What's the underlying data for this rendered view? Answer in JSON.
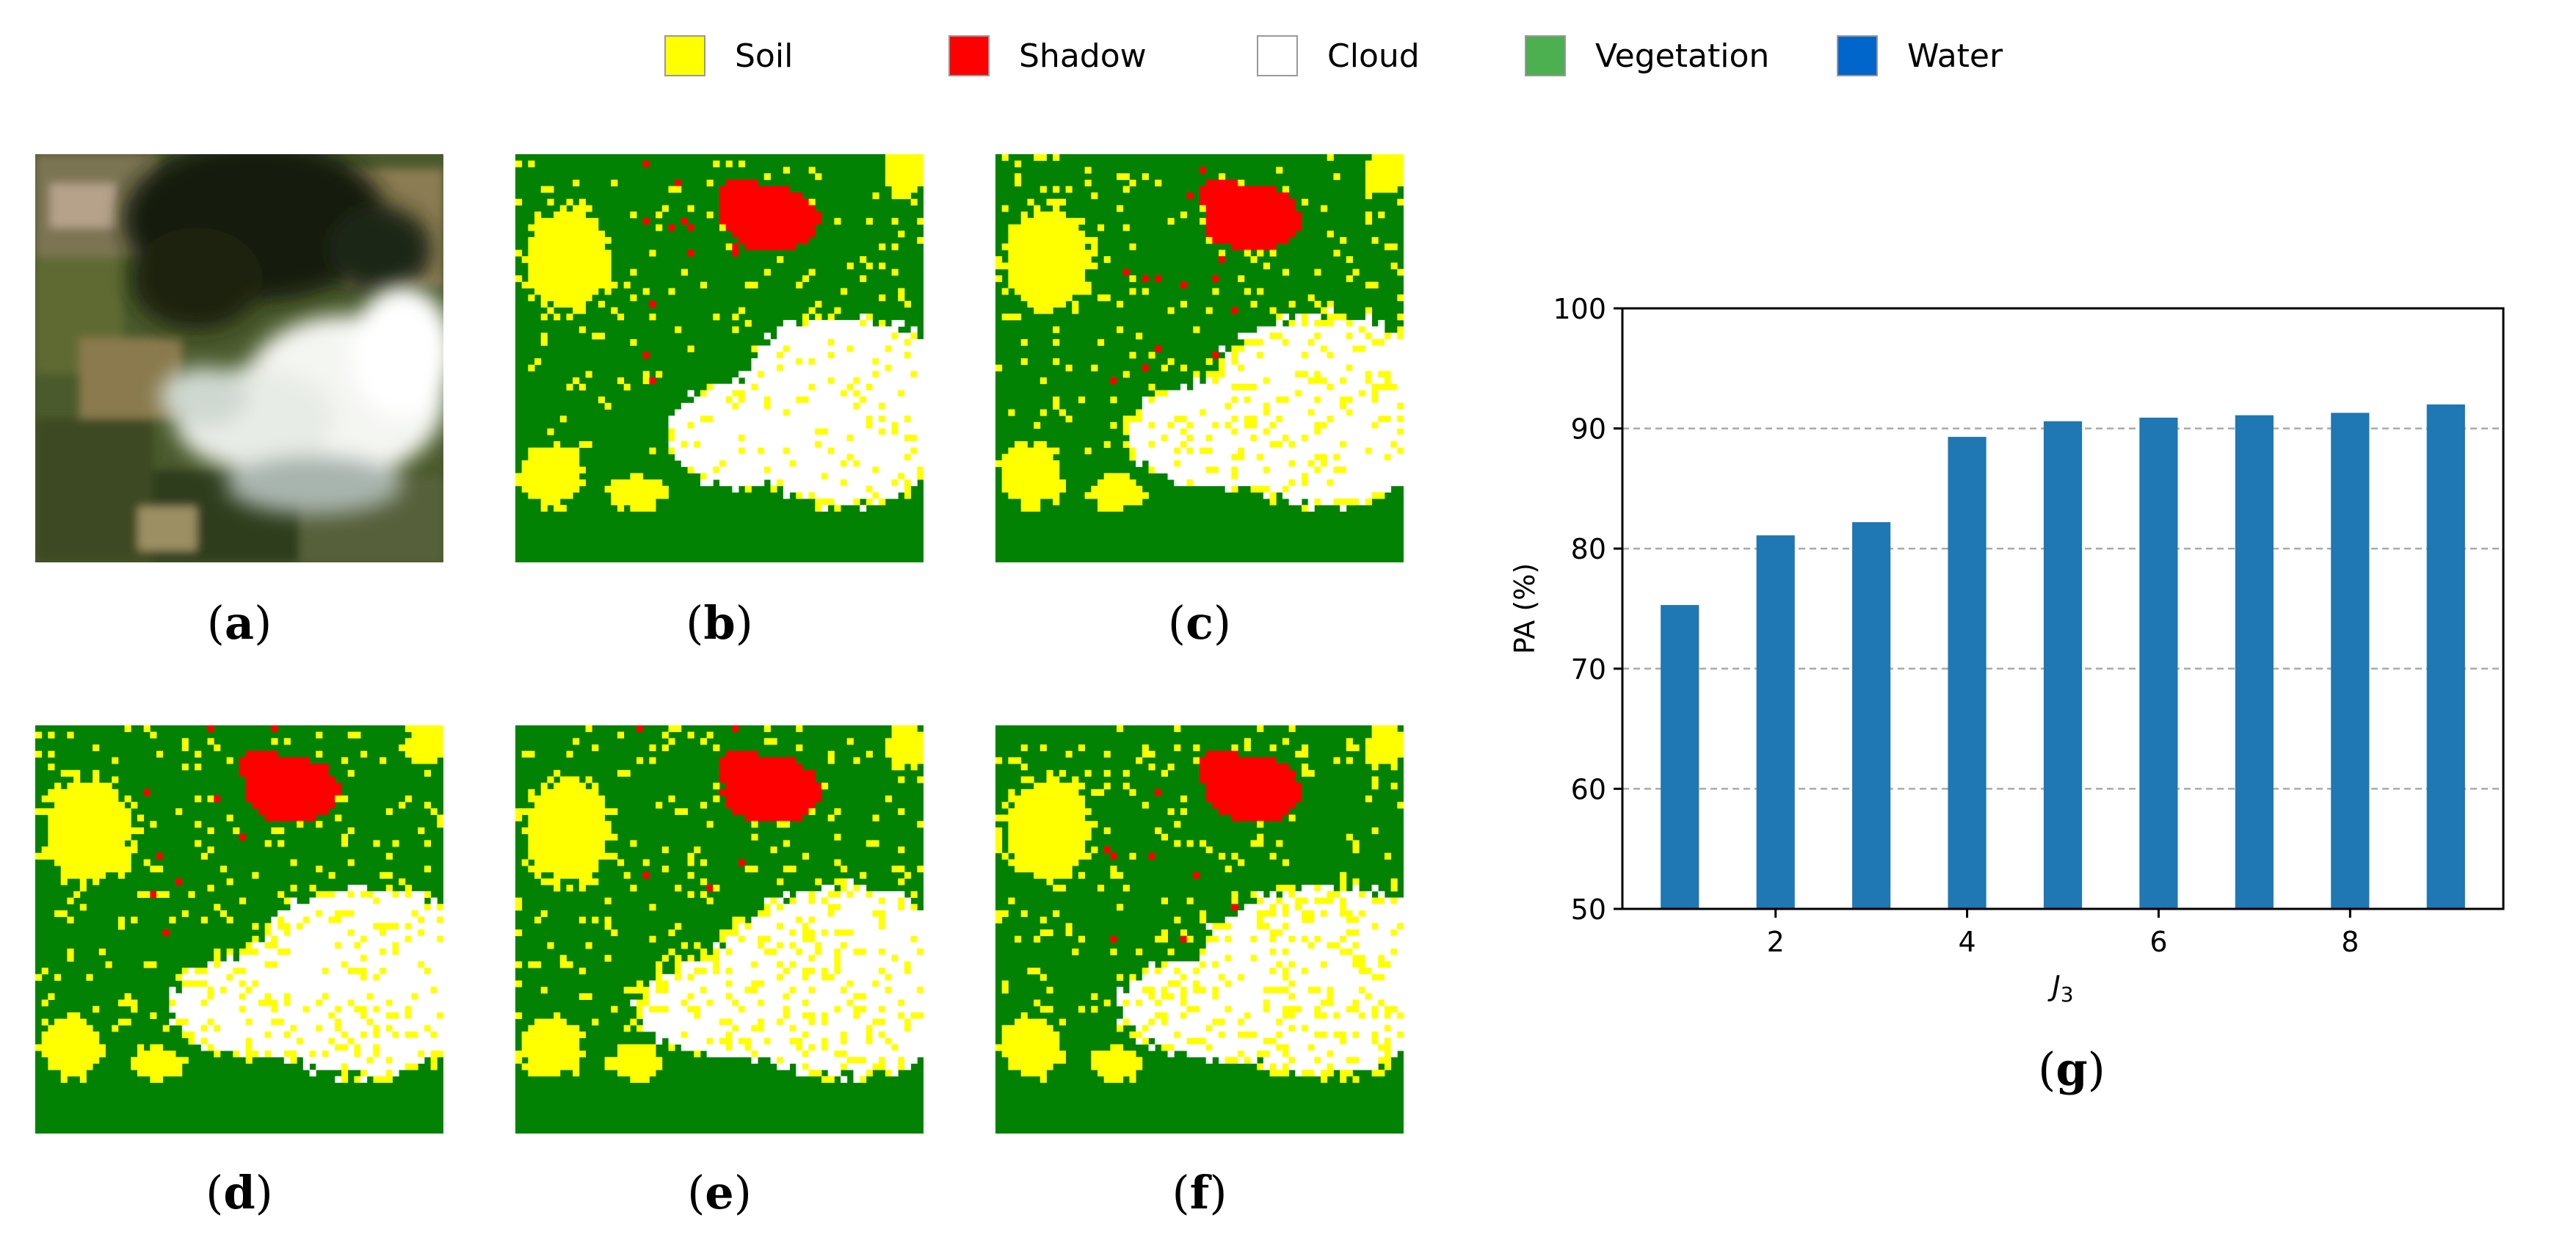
{
  "legend": [
    {
      "label": "Soil",
      "color": "#ffff00"
    },
    {
      "label": "Shadow",
      "color": "#ff0000"
    },
    {
      "label": "Cloud",
      "color": "#ffffff"
    },
    {
      "label": "Vegetation",
      "color": "#4caf50"
    },
    {
      "label": "Water",
      "color": "#0066cc"
    }
  ],
  "panels": [
    {
      "id": "a",
      "caption": "a",
      "kind": "rgb-image"
    },
    {
      "id": "b",
      "caption": "b",
      "kind": "classification-map"
    },
    {
      "id": "c",
      "caption": "c",
      "kind": "classification-map"
    },
    {
      "id": "d",
      "caption": "d",
      "kind": "classification-map"
    },
    {
      "id": "e",
      "caption": "e",
      "kind": "classification-map"
    },
    {
      "id": "f",
      "caption": "f",
      "kind": "classification-map"
    }
  ],
  "map_colors": {
    "vegetation": "#028202",
    "soil": "#ffff00",
    "shadow": "#ff0000",
    "cloud": "#ffffff"
  },
  "chart_caption": "g",
  "chart_data": {
    "type": "bar",
    "x": [
      1,
      2,
      3,
      4,
      5,
      6,
      7,
      8,
      9
    ],
    "values": [
      75.3,
      81.1,
      82.2,
      89.3,
      90.6,
      90.9,
      91.1,
      91.3,
      92.0
    ],
    "xticks": [
      2,
      4,
      6,
      8
    ],
    "yticks": [
      50,
      60,
      70,
      80,
      90,
      100
    ],
    "ylim": [
      50,
      100
    ],
    "xlim": [
      0.4,
      9.6
    ],
    "xlabel": "J",
    "xlabel_sub": "3",
    "ylabel": "PA (%)",
    "bar_color": "#1f77b4",
    "grid": "y-dashed"
  }
}
